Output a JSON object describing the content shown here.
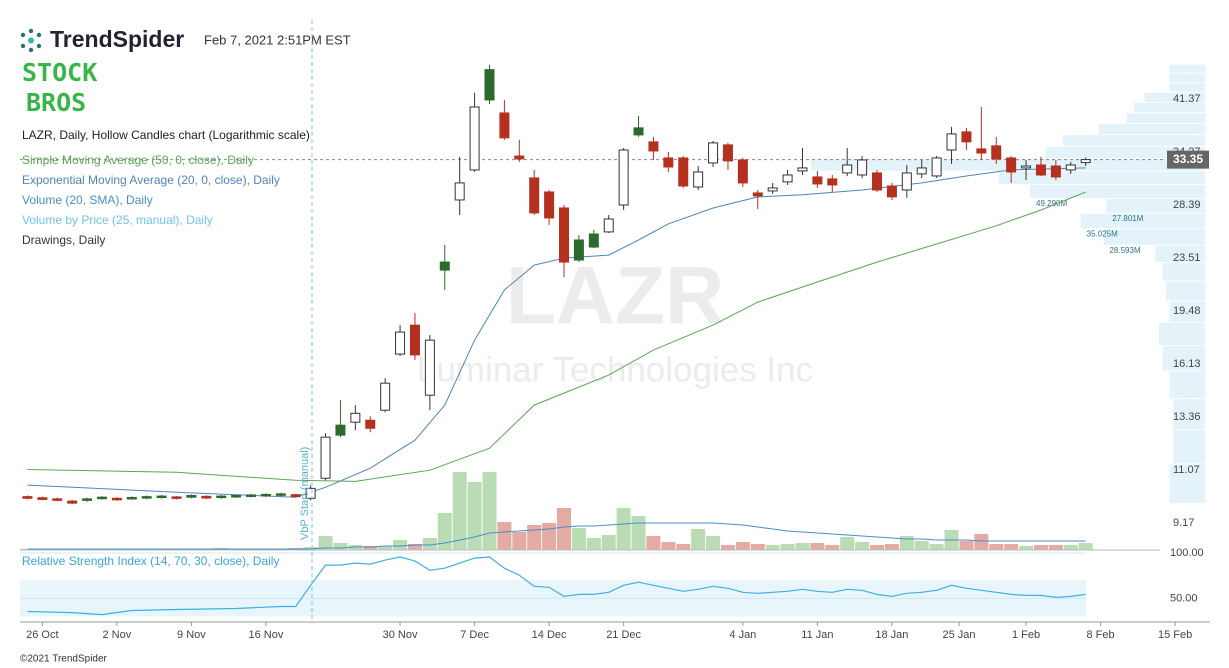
{
  "header": {
    "brand": "TrendSpider",
    "timestamp": "Feb 7, 2021 2:51PM EST",
    "partner": [
      "STOCK",
      "BROS"
    ],
    "copyright": "©2021 TrendSpider"
  },
  "chart_data": {
    "type": "candlestick",
    "title": "LAZR, Daily, Hollow Candles chart (Logarithmic scale)",
    "watermark": "LAZR",
    "watermark_subtitle": "Luminar Technologies Inc",
    "log_scale": true,
    "up_color": "#2d6a2f",
    "down_color": "#b5301f",
    "x": [
      0,
      1,
      2,
      3,
      4,
      5,
      6,
      7,
      8,
      9,
      10,
      11,
      12,
      13,
      14,
      15,
      16,
      17,
      18,
      19,
      20,
      21,
      22,
      23,
      24,
      25,
      26,
      27,
      28,
      29,
      30,
      31,
      32,
      33,
      34,
      35,
      36,
      37,
      38,
      39,
      40,
      41,
      42,
      43,
      44,
      45,
      46,
      47,
      48,
      49,
      50,
      51,
      52,
      53,
      54,
      55,
      56,
      57,
      58,
      59,
      60,
      61,
      62,
      63,
      64,
      65,
      66,
      67,
      68,
      69,
      70,
      71
    ],
    "open": [
      10.08,
      10.04,
      10.0,
      9.92,
      10.0,
      10.06,
      10.02,
      10.05,
      10.08,
      10.1,
      10.07,
      10.12,
      10.09,
      10.1,
      10.12,
      10.14,
      10.16,
      10.18,
      10.15,
      10.02,
      10.76,
      12.99,
      13.13,
      13.22,
      13.7,
      16.72,
      18.53,
      14.45,
      23.18,
      28.9,
      32.15,
      45.9,
      39.36,
      33.78,
      31.25,
      29.73,
      28.09,
      25.07,
      25.61,
      25.8,
      28.39,
      37.33,
      35.52,
      33.55,
      33.55,
      30.26,
      32.96,
      35.14,
      33.31,
      29.63,
      29.84,
      30.81,
      32.04,
      31.36,
      31.14,
      31.81,
      31.58,
      31.81,
      30.37,
      29.94,
      31.7,
      31.47,
      34.51,
      36.8,
      34.64,
      35.02,
      33.55,
      32.38,
      32.72,
      32.6,
      32.15,
      33.0
    ],
    "high": [
      10.12,
      10.08,
      10.05,
      9.96,
      10.04,
      10.1,
      10.06,
      10.09,
      10.12,
      10.14,
      10.1,
      10.16,
      10.13,
      10.14,
      10.16,
      10.18,
      10.2,
      10.22,
      10.18,
      10.49,
      12.63,
      14.2,
      13.95,
      13.41,
      15.35,
      18.53,
      19.35,
      17.89,
      24.63,
      33.67,
      42.27,
      46.7,
      41.22,
      35.77,
      32.15,
      29.94,
      28.39,
      25.52,
      25.98,
      27.4,
      34.76,
      38.94,
      36.16,
      34.27,
      33.79,
      32.6,
      35.64,
      35.39,
      33.55,
      29.94,
      30.7,
      32.15,
      34.76,
      32.04,
      31.58,
      34.76,
      33.79,
      32.15,
      30.7,
      32.72,
      33.31,
      33.79,
      37.46,
      37.33,
      40.2,
      36.16,
      33.79,
      33.31,
      33.67,
      33.31,
      33.08,
      33.6
    ],
    "low": [
      9.98,
      9.95,
      9.92,
      9.82,
      9.9,
      9.97,
      9.93,
      9.97,
      9.99,
      10.01,
      9.98,
      10.02,
      9.99,
      10.0,
      10.03,
      10.05,
      10.06,
      10.08,
      10.05,
      9.95,
      10.68,
      12.45,
      12.76,
      12.67,
      13.6,
      16.61,
      16.37,
      13.7,
      20.99,
      27.4,
      31.92,
      40.64,
      35.77,
      33.08,
      27.4,
      26.45,
      21.98,
      23.18,
      24.36,
      25.7,
      27.89,
      36.15,
      33.31,
      31.92,
      30.16,
      29.94,
      32.49,
      32.15,
      30.26,
      27.99,
      29.53,
      30.48,
      31.58,
      30.16,
      29.73,
      31.47,
      31.25,
      29.73,
      28.9,
      29.12,
      31.25,
      31.25,
      32.84,
      34.51,
      33.31,
      32.84,
      30.7,
      31.03,
      31.47,
      31.03,
      31.7,
      32.6
    ],
    "close": [
      10.02,
      9.98,
      9.95,
      9.85,
      9.96,
      10.01,
      9.97,
      10.0,
      10.03,
      10.05,
      10.02,
      10.06,
      10.03,
      10.05,
      10.07,
      10.09,
      10.11,
      10.13,
      10.08,
      10.38,
      12.45,
      12.54,
      13.55,
      12.85,
      15.08,
      18.08,
      16.67,
      17.57,
      22.53,
      30.7,
      40.2,
      41.22,
      36.03,
      33.43,
      27.6,
      27.11,
      23.18,
      23.35,
      24.45,
      27.01,
      34.51,
      36.41,
      34.39,
      32.49,
      30.37,
      31.92,
      35.39,
      33.2,
      30.7,
      29.32,
      30.16,
      31.58,
      32.38,
      30.59,
      30.48,
      32.72,
      33.31,
      29.94,
      29.22,
      31.81,
      32.38,
      33.55,
      36.54,
      35.52,
      34.14,
      33.43,
      31.92,
      32.6,
      31.58,
      31.36,
      32.72,
      33.35
    ],
    "xlim": [
      -0.5,
      78
    ],
    "xticks": [
      {
        "value": 1,
        "label": "26 Oct"
      },
      {
        "value": 6,
        "label": "2 Nov"
      },
      {
        "value": 11,
        "label": "9 Nov"
      },
      {
        "value": 16,
        "label": "16 Nov"
      },
      {
        "value": 25,
        "label": "30 Nov"
      },
      {
        "value": 30,
        "label": "7 Dec"
      },
      {
        "value": 35,
        "label": "14 Dec"
      },
      {
        "value": 40,
        "label": "21 Dec"
      },
      {
        "value": 48,
        "label": "4 Jan"
      },
      {
        "value": 53,
        "label": "11 Jan"
      },
      {
        "value": 58,
        "label": "18 Jan"
      },
      {
        "value": 62.5,
        "label": "25 Jan"
      },
      {
        "value": 67,
        "label": "1 Feb"
      },
      {
        "value": 72,
        "label": "8 Feb"
      },
      {
        "value": 77,
        "label": "15 Feb"
      }
    ],
    "ylim": [
      8.34,
      47.5
    ],
    "yticks": [
      9.17,
      11.07,
      13.36,
      16.13,
      19.48,
      23.51,
      28.39,
      34.27,
      41.37
    ],
    "last_price": 33.35,
    "indicators": [
      {
        "name": "Simple Moving Average (50, 0, close), Daily",
        "color": "#5aa655",
        "x": [
          0,
          10,
          18,
          22,
          27,
          31,
          34,
          39,
          42,
          46,
          49,
          53,
          57,
          61,
          65,
          68,
          71
        ],
        "values": [
          11.1,
          10.99,
          10.68,
          10.64,
          11.07,
          11.97,
          13.95,
          15.52,
          16.96,
          18.53,
          20.11,
          21.6,
          23.18,
          24.72,
          26.37,
          27.89,
          29.73
        ]
      },
      {
        "name": "Exponential Moving Average (20, 0, close), Daily",
        "color": "#4f86b8",
        "x": [
          0,
          10,
          18,
          20,
          23,
          26,
          28,
          30,
          32,
          34,
          36,
          39,
          41,
          43,
          46,
          49,
          52,
          56,
          60,
          63,
          66,
          71
        ],
        "values": [
          10.5,
          10.24,
          10.06,
          10.42,
          11.15,
          12.32,
          13.95,
          17.57,
          20.99,
          22.93,
          23.51,
          23.76,
          25.07,
          26.54,
          28.09,
          29.22,
          29.43,
          29.94,
          30.7,
          31.47,
          32.15,
          32.38
        ]
      }
    ],
    "volume": {
      "name": "Volume (20, SMA), Daily",
      "sma_color": "#4a8fc7",
      "up_color": "#b9dcb5",
      "down_color": "#e3aba3",
      "ylim": [
        0,
        90
      ],
      "values": [
        1,
        1,
        1,
        1,
        1,
        1,
        1,
        1,
        1,
        1,
        1,
        1,
        1,
        2,
        1,
        1,
        1,
        1,
        2,
        3,
        14,
        7,
        5,
        4,
        4,
        10,
        6,
        12,
        37,
        78,
        68,
        78,
        28,
        18,
        25,
        27,
        42,
        22,
        12,
        15,
        42,
        34,
        14,
        8,
        6,
        21,
        14,
        5,
        8,
        6,
        5,
        6,
        7,
        7,
        5,
        13,
        8,
        5,
        6,
        14,
        9,
        6,
        20,
        9,
        16,
        6,
        6,
        4,
        5,
        5,
        5,
        7
      ],
      "sma": [
        1,
        1,
        1,
        1,
        1,
        1,
        1,
        1,
        1,
        1,
        1,
        1,
        1,
        1,
        1,
        1,
        1,
        1,
        1,
        1,
        2,
        2,
        3,
        3,
        4,
        4,
        5,
        5,
        7,
        10,
        13,
        17,
        18,
        19,
        20,
        21,
        23,
        24,
        24,
        25,
        26,
        27,
        27,
        27,
        27,
        27,
        27,
        26,
        25,
        23,
        21,
        19,
        18,
        17,
        16,
        15,
        14,
        13,
        12,
        11,
        11,
        10,
        10,
        10,
        9,
        9,
        9,
        9,
        9,
        9,
        9,
        9
      ]
    },
    "vbp": {
      "name": "Volume by Price (25, manual), Daily",
      "color": "#e4f3fa",
      "annotation": "VbP Start (manual)",
      "xlim": [
        0,
        120
      ],
      "bins": [
        9.82,
        11.3,
        12.77,
        14.25,
        15.72,
        17.2,
        18.67,
        20.15,
        21.62,
        23.1,
        24.57,
        26.05,
        27.52,
        29.0,
        30.47,
        31.95,
        33.42,
        34.9,
        36.38,
        37.85,
        39.33,
        40.8,
        42.28,
        43.75,
        45.23,
        46.7
      ],
      "values": [
        10,
        9,
        9,
        10,
        12,
        13,
        10,
        11,
        12,
        14,
        28.593,
        35.025,
        27.801,
        49.29,
        58,
        111,
        45,
        40,
        30,
        22,
        20,
        17,
        10,
        10,
        10
      ],
      "value_labels": [
        null,
        null,
        null,
        null,
        null,
        null,
        null,
        null,
        null,
        null,
        "28.593M",
        "35.025M",
        "27.801M",
        "49.290M",
        null,
        null,
        null,
        null,
        null,
        null,
        null,
        null,
        null,
        null,
        null
      ]
    },
    "drawings": "Drawings, Daily",
    "rsi": {
      "name": "Relative Strength Index (14, 70, 30, close), Daily",
      "color": "#3fb0e0",
      "band_color": "#e8f6fb",
      "band": [
        30,
        70
      ],
      "ylim": [
        24,
        100
      ],
      "yticks": [
        {
          "value": 100,
          "label": "100.00"
        },
        {
          "value": 50,
          "label": "50.00"
        }
      ],
      "x": [
        0,
        3,
        5,
        7,
        10,
        14,
        17,
        18,
        19,
        20,
        21,
        22,
        23,
        24,
        25,
        26,
        27,
        28,
        29,
        30,
        31,
        32,
        33,
        34,
        35,
        36,
        37,
        38,
        39,
        40,
        41,
        42,
        43,
        44,
        45,
        46,
        47,
        48,
        49,
        50,
        51,
        52,
        53,
        54,
        55,
        56,
        57,
        58,
        59,
        60,
        61,
        62,
        63,
        64,
        65,
        66,
        67,
        68,
        69,
        70,
        71
      ],
      "values": [
        35.6,
        34.4,
        32.2,
        36.7,
        37.8,
        38.9,
        41.1,
        41.1,
        64.4,
        86.7,
        86.7,
        88.9,
        87.8,
        92.2,
        95.6,
        91.1,
        81.1,
        83.3,
        88.9,
        94.4,
        95.6,
        83.3,
        75.6,
        63.3,
        62.2,
        52.2,
        54.4,
        54.4,
        56.7,
        64.4,
        67.8,
        64.4,
        61.1,
        57.8,
        60,
        63.3,
        61.1,
        56.7,
        55.6,
        56.7,
        57.8,
        60,
        57.8,
        56.7,
        60,
        58.9,
        54.4,
        52.2,
        55.6,
        56.7,
        58.9,
        64.4,
        61.1,
        58.9,
        56.7,
        54.4,
        53.3,
        53.3,
        51.1,
        52.2,
        54.4
      ]
    }
  }
}
